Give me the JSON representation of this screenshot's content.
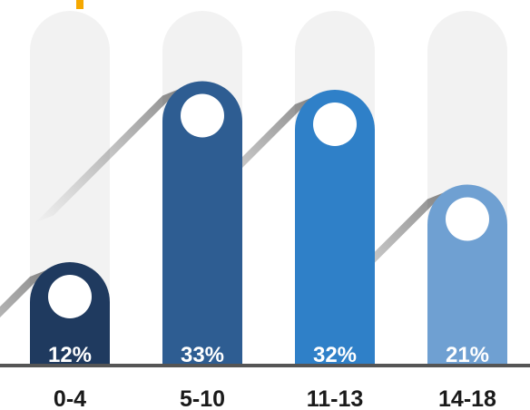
{
  "chart_data": {
    "type": "bar",
    "categories": [
      "0-4",
      "5-10",
      "11-13",
      "14-18"
    ],
    "values": [
      12,
      33,
      32,
      21
    ],
    "value_labels": [
      "12%",
      "33%",
      "32%",
      "21%"
    ],
    "ylim": [
      0,
      40
    ],
    "grid": false,
    "legend": "none",
    "colors": [
      "#1f3a5f",
      "#2e5d92",
      "#2f80c8",
      "#6fa0d2"
    ],
    "track_color": "#f2f2f2",
    "baseline_color": "#555555",
    "accent_color": "#f5a800"
  }
}
